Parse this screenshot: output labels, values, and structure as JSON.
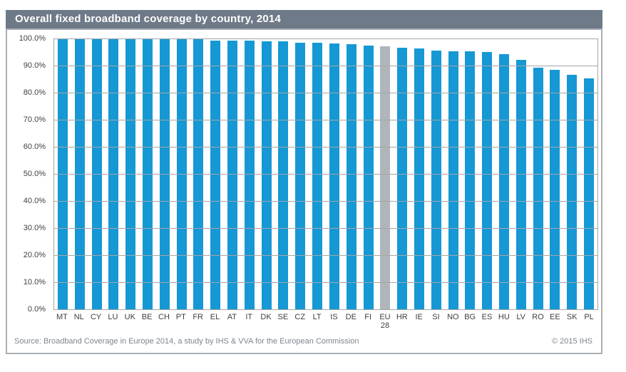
{
  "title": "Overall fixed broadband coverage by country, 2014",
  "footer": {
    "source": "Source: Broadband Coverage in Europe 2014, a study by IHS & VVA for the European Commission",
    "copyright": "© 2015 IHS"
  },
  "colors": {
    "title_bar": "#6E7A88",
    "title_text": "#FFFFFF",
    "bar": "#1598D4",
    "highlight_bar": "#AFB5BB",
    "gridline": "#A6A6A6",
    "frame_border": "#A9AFB6",
    "tick_text": "#3F3F3F",
    "footer_text": "#7E868E"
  },
  "chart_data": {
    "type": "bar",
    "title": "Overall fixed broadband coverage by country, 2014",
    "categories": [
      "MT",
      "NL",
      "CY",
      "LU",
      "UK",
      "BE",
      "CH",
      "PT",
      "FR",
      "EL",
      "AT",
      "IT",
      "DK",
      "SE",
      "CZ",
      "LT",
      "IS",
      "DE",
      "FI",
      "EU 28",
      "HR",
      "IE",
      "SI",
      "NO",
      "BG",
      "ES",
      "HU",
      "LV",
      "RO",
      "EE",
      "SK",
      "PL"
    ],
    "values": [
      100.0,
      100.0,
      100.0,
      100.0,
      100.0,
      100.0,
      100.0,
      99.9,
      99.7,
      99.3,
      99.2,
      99.1,
      99.0,
      98.9,
      98.5,
      98.3,
      98.1,
      98.0,
      97.3,
      97.0,
      96.7,
      96.3,
      95.5,
      95.3,
      95.2,
      95.0,
      94.2,
      92.0,
      89.2,
      88.4,
      86.5,
      85.3
    ],
    "value_unit": "%",
    "highlight_category": "EU 28",
    "xlabel": "",
    "ylabel": "",
    "ylim": [
      0,
      100
    ],
    "ytick_step": 10,
    "yticks": [
      "100.0%",
      "90.0%",
      "80.0%",
      "70.0%",
      "60.0%",
      "50.0%",
      "40.0%",
      "30.0%",
      "20.0%",
      "10.0%",
      "0.0%"
    ],
    "grid": true,
    "legend": false
  }
}
